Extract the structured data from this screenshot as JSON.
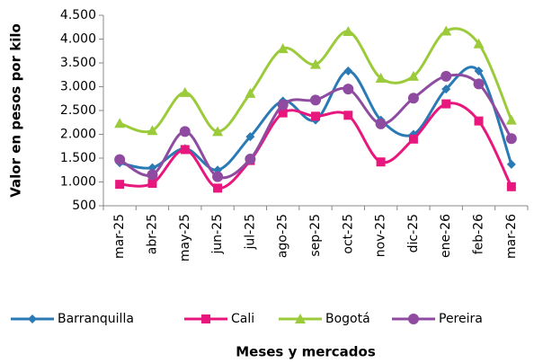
{
  "chart_data": {
    "type": "line",
    "y_label": "Valor en pesos por kilo",
    "x_label": "Meses y mercados",
    "categories": [
      "mar-25",
      "abr-25",
      "may-25",
      "jun-25",
      "jul-25",
      "ago-25",
      "sep-25",
      "oct-25",
      "nov-25",
      "dic-25",
      "ene-26",
      "feb-26",
      "mar-26"
    ],
    "ylim": [
      500,
      4500
    ],
    "yticks": [
      {
        "value": 4500,
        "label": "4.500"
      },
      {
        "value": 4000,
        "label": "4.000"
      },
      {
        "value": 3500,
        "label": "3.500"
      },
      {
        "value": 3000,
        "label": "3.000"
      },
      {
        "value": 2500,
        "label": "2.500"
      },
      {
        "value": 2000,
        "label": "2.000"
      },
      {
        "value": 1500,
        "label": "1.500"
      },
      {
        "value": 1000,
        "label": "1.000"
      },
      500
    ],
    "grid": false,
    "legend": "bottom",
    "series": [
      {
        "name": "Barranquilla",
        "color": "#2A7AB5",
        "marker": "diamond",
        "values": [
          1400,
          1300,
          1700,
          1250,
          1950,
          2700,
          2300,
          3330,
          2300,
          2000,
          2950,
          3330,
          1370
        ]
      },
      {
        "name": "Cali",
        "color": "#E8177D",
        "marker": "square",
        "values": [
          950,
          970,
          1680,
          870,
          1450,
          2450,
          2380,
          2400,
          1420,
          1900,
          2640,
          2280,
          900
        ]
      },
      {
        "name": "Bogotá",
        "color": "#9BCB3B",
        "marker": "triangle",
        "values": [
          2230,
          2080,
          2880,
          2060,
          2860,
          3800,
          3470,
          4160,
          3180,
          3220,
          4170,
          3900,
          2300
        ]
      },
      {
        "name": "Pereira",
        "color": "#8E4BA0",
        "marker": "circle",
        "values": [
          1470,
          1150,
          2060,
          1110,
          1480,
          2620,
          2720,
          2950,
          2220,
          2760,
          3220,
          3060,
          1910
        ]
      }
    ]
  }
}
